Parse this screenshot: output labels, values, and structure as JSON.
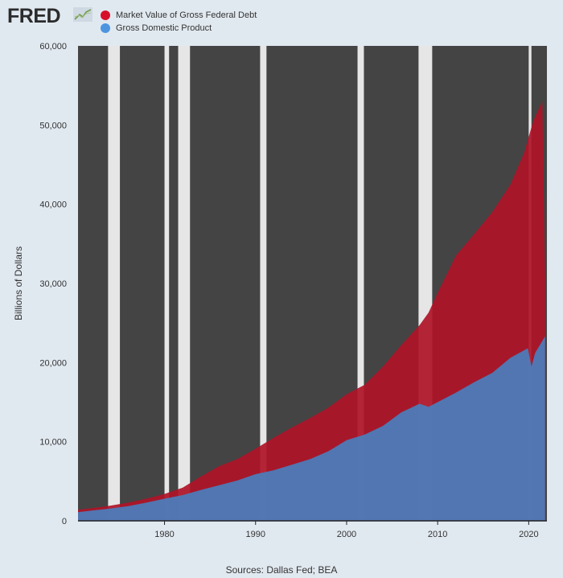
{
  "header": {
    "logo_text": "FRED",
    "logo_icon": "trend-line-icon"
  },
  "legend": [
    {
      "label": "Market Value of Gross Federal Debt",
      "color": "#d6102a"
    },
    {
      "label": "Gross Domestic Product",
      "color": "#4e95e0"
    }
  ],
  "source": "Sources: Dallas Fed; BEA",
  "chart_data": {
    "type": "area",
    "title": "",
    "xlabel": "",
    "ylabel": "Billions of Dollars",
    "xlim": [
      1970.5,
      2022.0
    ],
    "ylim": [
      0,
      60000
    ],
    "yticks": [
      0,
      10000,
      20000,
      30000,
      40000,
      50000,
      60000
    ],
    "ytick_labels": [
      "0",
      "10,000",
      "20,000",
      "30,000",
      "40,000",
      "50,000",
      "60,000"
    ],
    "xticks": [
      1980,
      1990,
      2000,
      2010,
      2020
    ],
    "xtick_labels": [
      "1980",
      "1990",
      "2000",
      "2010",
      "2020"
    ],
    "grid": false,
    "legend_position": "top-left",
    "background_color": "#444444",
    "recessions": [
      {
        "start": 1973.8,
        "end": 1975.1
      },
      {
        "start": 1980.0,
        "end": 1980.5
      },
      {
        "start": 1981.5,
        "end": 1982.8
      },
      {
        "start": 1990.5,
        "end": 1991.2
      },
      {
        "start": 2001.2,
        "end": 2001.9
      },
      {
        "start": 2007.9,
        "end": 2009.4
      },
      {
        "start": 2020.0,
        "end": 2020.3
      }
    ],
    "series": [
      {
        "name": "Market Value of Gross Federal Debt",
        "color": "#b01428",
        "points": [
          [
            1970.5,
            1400
          ],
          [
            1972,
            1600
          ],
          [
            1974,
            1900
          ],
          [
            1976,
            2300
          ],
          [
            1978,
            2800
          ],
          [
            1980,
            3400
          ],
          [
            1982,
            4200
          ],
          [
            1984,
            5600
          ],
          [
            1986,
            6900
          ],
          [
            1988,
            7800
          ],
          [
            1990,
            9100
          ],
          [
            1992,
            10500
          ],
          [
            1994,
            11800
          ],
          [
            1996,
            13000
          ],
          [
            1998,
            14300
          ],
          [
            2000,
            16000
          ],
          [
            2002,
            17200
          ],
          [
            2004,
            19500
          ],
          [
            2006,
            22200
          ],
          [
            2008,
            24700
          ],
          [
            2009,
            26300
          ],
          [
            2010,
            28800
          ],
          [
            2012,
            33500
          ],
          [
            2014,
            36200
          ],
          [
            2016,
            39000
          ],
          [
            2018,
            42500
          ],
          [
            2019.5,
            46500
          ],
          [
            2020.5,
            50500
          ],
          [
            2021.5,
            53000
          ],
          [
            2021.8,
            30700
          ]
        ]
      },
      {
        "name": "Gross Domestic Product",
        "color": "#4a7fbd",
        "points": [
          [
            1970.5,
            1100
          ],
          [
            1972,
            1300
          ],
          [
            1974,
            1550
          ],
          [
            1976,
            1850
          ],
          [
            1978,
            2300
          ],
          [
            1980,
            2800
          ],
          [
            1982,
            3250
          ],
          [
            1984,
            3900
          ],
          [
            1986,
            4500
          ],
          [
            1988,
            5100
          ],
          [
            1990,
            5900
          ],
          [
            1992,
            6400
          ],
          [
            1994,
            7100
          ],
          [
            1996,
            7800
          ],
          [
            1998,
            8800
          ],
          [
            2000,
            10200
          ],
          [
            2002,
            10900
          ],
          [
            2004,
            12000
          ],
          [
            2006,
            13700
          ],
          [
            2008,
            14800
          ],
          [
            2009,
            14400
          ],
          [
            2010,
            15000
          ],
          [
            2012,
            16200
          ],
          [
            2014,
            17500
          ],
          [
            2016,
            18700
          ],
          [
            2018,
            20600
          ],
          [
            2019.9,
            21800
          ],
          [
            2020.3,
            19500
          ],
          [
            2020.7,
            21200
          ],
          [
            2021.8,
            23300
          ]
        ]
      }
    ]
  }
}
